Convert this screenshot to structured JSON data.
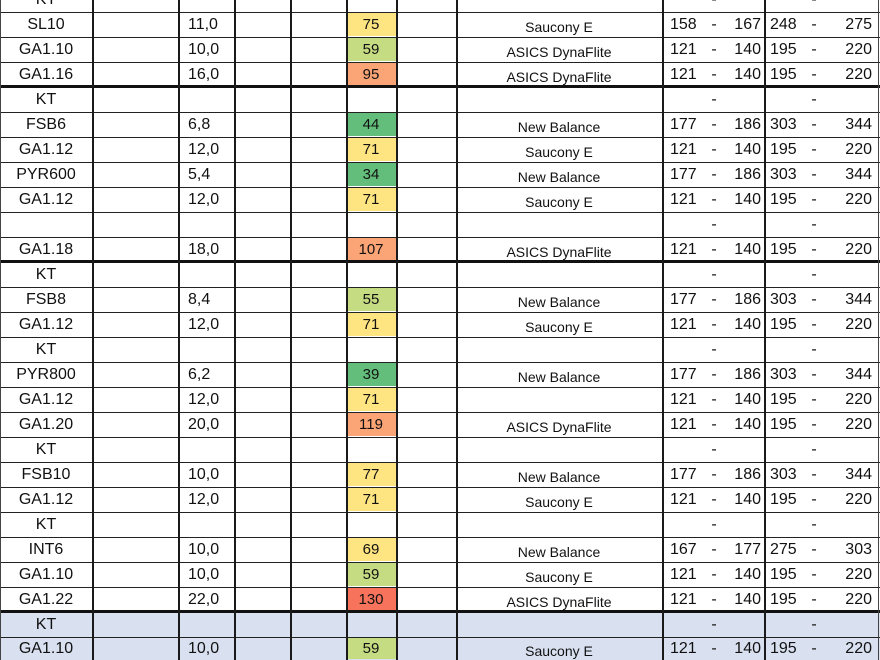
{
  "colors": {
    "green": "#63be7b",
    "light_green": "#c6dc82",
    "yellow": "#fee582",
    "orange": "#fba576",
    "red": "#f8735c",
    "blue_band": "#d9e1f1"
  },
  "rows": [
    {
      "code": "KT",
      "num": "",
      "val": "",
      "color": "",
      "shoe": "",
      "r1a": "",
      "r1d": "-",
      "r1b": "",
      "r2a": "",
      "r2d": "-",
      "r2b": ""
    },
    {
      "code": "SL10",
      "num": "11,0",
      "val": "75",
      "color": "yellow",
      "shoe": "Saucony E",
      "r1a": "158",
      "r1d": "-",
      "r1b": "167",
      "r2a": "248",
      "r2d": "-",
      "r2b": "275"
    },
    {
      "code": "GA1.10",
      "num": "10,0",
      "val": "59",
      "color": "light_green",
      "shoe": "ASICS DynaFlite",
      "r1a": "121",
      "r1d": "-",
      "r1b": "140",
      "r2a": "195",
      "r2d": "-",
      "r2b": "220"
    },
    {
      "code": "GA1.16",
      "num": "16,0",
      "val": "95",
      "color": "orange",
      "shoe": "ASICS DynaFlite",
      "r1a": "121",
      "r1d": "-",
      "r1b": "140",
      "r2a": "195",
      "r2d": "-",
      "r2b": "220"
    },
    {
      "code": "KT",
      "num": "",
      "val": "",
      "color": "",
      "shoe": "",
      "r1a": "",
      "r1d": "-",
      "r1b": "",
      "r2a": "",
      "r2d": "-",
      "r2b": ""
    },
    {
      "code": "FSB6",
      "num": "6,8",
      "val": "44",
      "color": "green",
      "shoe": "New Balance",
      "r1a": "177",
      "r1d": "-",
      "r1b": "186",
      "r2a": "303",
      "r2d": "-",
      "r2b": "344"
    },
    {
      "code": "GA1.12",
      "num": "12,0",
      "val": "71",
      "color": "yellow",
      "shoe": "Saucony E",
      "r1a": "121",
      "r1d": "-",
      "r1b": "140",
      "r2a": "195",
      "r2d": "-",
      "r2b": "220"
    },
    {
      "code": "PYR600",
      "num": "5,4",
      "val": "34",
      "color": "green",
      "shoe": "New Balance",
      "r1a": "177",
      "r1d": "-",
      "r1b": "186",
      "r2a": "303",
      "r2d": "-",
      "r2b": "344"
    },
    {
      "code": "GA1.12",
      "num": "12,0",
      "val": "71",
      "color": "yellow",
      "shoe": "Saucony E",
      "r1a": "121",
      "r1d": "-",
      "r1b": "140",
      "r2a": "195",
      "r2d": "-",
      "r2b": "220"
    },
    {
      "code": "",
      "num": "",
      "val": "",
      "color": "",
      "shoe": "",
      "r1a": "",
      "r1d": "-",
      "r1b": "",
      "r2a": "",
      "r2d": "-",
      "r2b": ""
    },
    {
      "code": "GA1.18",
      "num": "18,0",
      "val": "107",
      "color": "orange",
      "shoe": "ASICS DynaFlite",
      "r1a": "121",
      "r1d": "-",
      "r1b": "140",
      "r2a": "195",
      "r2d": "-",
      "r2b": "220"
    },
    {
      "code": "KT",
      "num": "",
      "val": "",
      "color": "",
      "shoe": "",
      "r1a": "",
      "r1d": "-",
      "r1b": "",
      "r2a": "",
      "r2d": "-",
      "r2b": ""
    },
    {
      "code": "FSB8",
      "num": "8,4",
      "val": "55",
      "color": "light_green",
      "shoe": "New Balance",
      "r1a": "177",
      "r1d": "-",
      "r1b": "186",
      "r2a": "303",
      "r2d": "-",
      "r2b": "344"
    },
    {
      "code": "GA1.12",
      "num": "12,0",
      "val": "71",
      "color": "yellow",
      "shoe": "Saucony E",
      "r1a": "121",
      "r1d": "-",
      "r1b": "140",
      "r2a": "195",
      "r2d": "-",
      "r2b": "220"
    },
    {
      "code": "KT",
      "num": "",
      "val": "",
      "color": "",
      "shoe": "",
      "r1a": "",
      "r1d": "-",
      "r1b": "",
      "r2a": "",
      "r2d": "-",
      "r2b": ""
    },
    {
      "code": "PYR800",
      "num": "6,2",
      "val": "39",
      "color": "green",
      "shoe": "New Balance",
      "r1a": "177",
      "r1d": "-",
      "r1b": "186",
      "r2a": "303",
      "r2d": "-",
      "r2b": "344"
    },
    {
      "code": "GA1.12",
      "num": "12,0",
      "val": "71",
      "color": "yellow",
      "shoe": "",
      "r1a": "121",
      "r1d": "-",
      "r1b": "140",
      "r2a": "195",
      "r2d": "-",
      "r2b": "220"
    },
    {
      "code": "GA1.20",
      "num": "20,0",
      "val": "119",
      "color": "orange",
      "shoe": "ASICS DynaFlite",
      "r1a": "121",
      "r1d": "-",
      "r1b": "140",
      "r2a": "195",
      "r2d": "-",
      "r2b": "220"
    },
    {
      "code": "KT",
      "num": "",
      "val": "",
      "color": "",
      "shoe": "",
      "r1a": "",
      "r1d": "-",
      "r1b": "",
      "r2a": "",
      "r2d": "-",
      "r2b": ""
    },
    {
      "code": "FSB10",
      "num": "10,0",
      "val": "77",
      "color": "yellow",
      "shoe": "New Balance",
      "r1a": "177",
      "r1d": "-",
      "r1b": "186",
      "r2a": "303",
      "r2d": "-",
      "r2b": "344"
    },
    {
      "code": "GA1.12",
      "num": "12,0",
      "val": "71",
      "color": "yellow",
      "shoe": "Saucony E",
      "r1a": "121",
      "r1d": "-",
      "r1b": "140",
      "r2a": "195",
      "r2d": "-",
      "r2b": "220"
    },
    {
      "code": "KT",
      "num": "",
      "val": "",
      "color": "",
      "shoe": "",
      "r1a": "",
      "r1d": "-",
      "r1b": "",
      "r2a": "",
      "r2d": "-",
      "r2b": ""
    },
    {
      "code": "INT6",
      "num": "10,0",
      "val": "69",
      "color": "yellow",
      "shoe": "New Balance",
      "r1a": "167",
      "r1d": "-",
      "r1b": "177",
      "r2a": "275",
      "r2d": "-",
      "r2b": "303"
    },
    {
      "code": "GA1.10",
      "num": "10,0",
      "val": "59",
      "color": "light_green",
      "shoe": "Saucony E",
      "r1a": "121",
      "r1d": "-",
      "r1b": "140",
      "r2a": "195",
      "r2d": "-",
      "r2b": "220"
    },
    {
      "code": "GA1.22",
      "num": "22,0",
      "val": "130",
      "color": "red",
      "shoe": "ASICS DynaFlite",
      "r1a": "121",
      "r1d": "-",
      "r1b": "140",
      "r2a": "195",
      "r2d": "-",
      "r2b": "220"
    },
    {
      "code": "KT",
      "num": "",
      "val": "",
      "color": "",
      "shoe": "",
      "r1a": "",
      "r1d": "-",
      "r1b": "",
      "r2a": "",
      "r2d": "-",
      "r2b": "",
      "band": "blue"
    },
    {
      "code": "GA1.10",
      "num": "10,0",
      "val": "59",
      "color": "light_green",
      "shoe": "Saucony E",
      "r1a": "121",
      "r1d": "-",
      "r1b": "140",
      "r2a": "195",
      "r2d": "-",
      "r2b": "220",
      "band": "blue"
    }
  ]
}
